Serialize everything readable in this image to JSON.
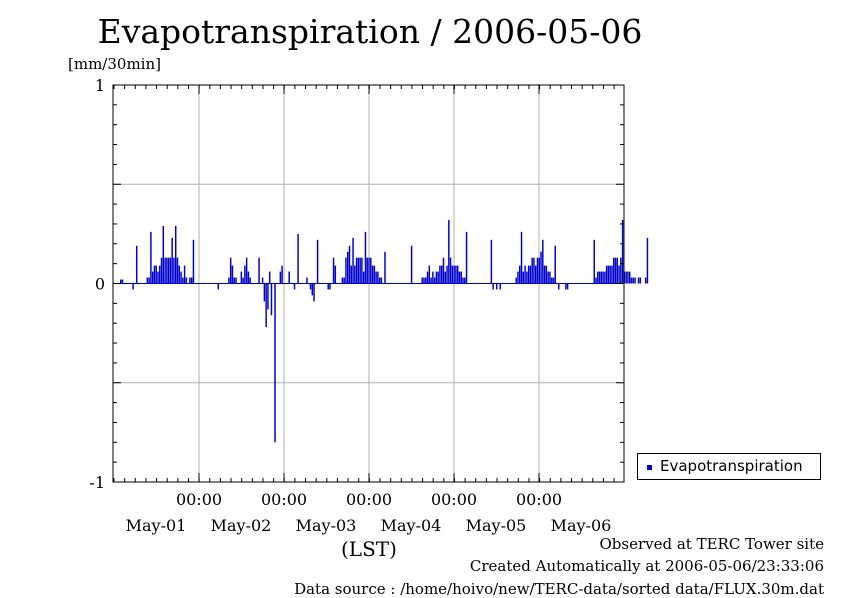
{
  "title": "Evapotranspiration / 2006-05-06",
  "unit_label": "[mm/30min]",
  "x_axis_label": "(LST)",
  "footnotes": {
    "observed": "Observed at TERC Tower site",
    "created": "Created Automatically at 2006-05-06/23:33:06",
    "source": "Data source : /home/hoivo/new/TERC-data/sorted  data/FLUX.30m.dat"
  },
  "colors": {
    "series": "#0000cc",
    "grid": "#b0b0b0",
    "axis": "#000000"
  },
  "chart_data": {
    "type": "bar",
    "ylim": [
      -1,
      1
    ],
    "y_ticks": [
      1,
      0,
      -1
    ],
    "y_tick_labels": [
      "1",
      "0",
      "-1"
    ],
    "y_gridlines": [
      0.5,
      0,
      -0.5
    ],
    "x_time_labels": [
      "00:00",
      "00:00",
      "00:00",
      "00:00",
      "00:00"
    ],
    "x_date_labels": [
      "May-01",
      "May-02",
      "May-03",
      "May-04",
      "May-05",
      "May-06"
    ],
    "grid": true,
    "legend_position": "right",
    "series": [
      {
        "name": "Evapotranspiration",
        "slots_per_day": 48,
        "start": "2006-04-30 12:00",
        "values": [
          0.02,
          0.02,
          0.0,
          0.0,
          0.0,
          0.0,
          0.0,
          -0.03,
          0.0,
          0.19,
          0.0,
          0.0,
          0.0,
          0.0,
          0.0,
          0.03,
          0.03,
          0.26,
          0.06,
          0.09,
          0.09,
          0.06,
          0.09,
          0.13,
          0.29,
          0.13,
          0.13,
          0.13,
          0.13,
          0.23,
          0.13,
          0.29,
          0.13,
          0.09,
          0.06,
          0.03,
          0.09,
          0.03,
          0.0,
          0.03,
          0.03,
          0.22,
          0.0,
          0.0,
          0.0,
          0.0,
          0.0,
          0.0,
          0.0,
          0.0,
          0.0,
          0.0,
          0.0,
          0.0,
          0.0,
          -0.03,
          0.0,
          0.0,
          0.0,
          0.0,
          0.0,
          0.03,
          0.13,
          0.09,
          0.03,
          0.03,
          0.0,
          0.0,
          0.06,
          0.03,
          0.09,
          0.13,
          0.06,
          0.03,
          0.0,
          0.0,
          0.0,
          0.0,
          0.13,
          0.0,
          0.03,
          -0.09,
          -0.22,
          -0.13,
          0.06,
          -0.16,
          0.0,
          -0.8,
          0.0,
          0.0,
          0.06,
          0.09,
          0.0,
          0.0,
          0.0,
          0.06,
          0.0,
          0.0,
          -0.03,
          0.0,
          0.25,
          0.0,
          0.0,
          0.0,
          0.0,
          0.03,
          0.0,
          -0.03,
          -0.06,
          -0.09,
          0.0,
          0.22,
          0.0,
          0.0,
          0.0,
          0.0,
          0.0,
          -0.03,
          -0.03,
          0.0,
          0.13,
          0.09,
          0.0,
          0.0,
          0.0,
          0.03,
          0.03,
          0.13,
          0.16,
          0.19,
          0.09,
          0.23,
          0.09,
          0.13,
          0.13,
          0.13,
          0.13,
          0.06,
          0.26,
          0.13,
          0.13,
          0.13,
          0.09,
          0.09,
          0.06,
          0.06,
          0.03,
          0.03,
          0.0,
          0.16,
          0.0,
          0.0,
          0.0,
          0.0,
          0.0,
          0.0,
          0.0,
          0.0,
          0.0,
          0.0,
          0.0,
          0.0,
          0.0,
          0.0,
          0.19,
          0.0,
          0.0,
          0.0,
          0.0,
          0.0,
          0.03,
          0.03,
          0.03,
          0.06,
          0.09,
          0.03,
          0.06,
          0.03,
          0.06,
          0.06,
          0.09,
          0.09,
          0.13,
          0.06,
          0.09,
          0.32,
          0.13,
          0.09,
          0.09,
          0.09,
          0.09,
          0.06,
          0.06,
          0.03,
          0.03,
          0.26,
          0.0,
          0.0,
          0.0,
          0.0,
          0.0,
          0.0,
          0.0,
          0.0,
          0.0,
          0.0,
          0.0,
          0.0,
          0.0,
          0.22,
          -0.03,
          0.0,
          -0.03,
          0.0,
          -0.03,
          0.0,
          0.0,
          0.0,
          0.0,
          0.0,
          0.0,
          0.0,
          0.0,
          0.03,
          0.06,
          0.09,
          0.26,
          0.06,
          0.09,
          0.06,
          0.09,
          0.09,
          0.13,
          0.13,
          0.09,
          0.13,
          0.13,
          0.16,
          0.22,
          0.09,
          0.09,
          0.06,
          0.06,
          0.03,
          0.03,
          0.19,
          0.0,
          -0.03,
          0.0,
          0.0,
          0.0,
          -0.03,
          -0.03,
          0.0,
          0.0,
          0.0,
          0.0,
          0.0,
          0.0,
          0.0,
          0.0,
          0.0,
          0.0,
          0.0,
          0.0,
          0.0,
          0.0,
          0.22,
          0.03,
          0.06,
          0.06,
          0.06,
          0.06,
          0.06,
          0.09,
          0.09,
          0.09,
          0.09,
          0.13,
          0.13,
          0.13,
          0.09,
          0.13,
          0.32,
          0.06,
          0.06,
          0.06,
          0.06,
          0.03,
          0.03,
          0.03,
          0.0,
          0.03,
          0.03,
          0.0,
          0.0,
          0.03,
          0.23
        ]
      }
    ]
  }
}
